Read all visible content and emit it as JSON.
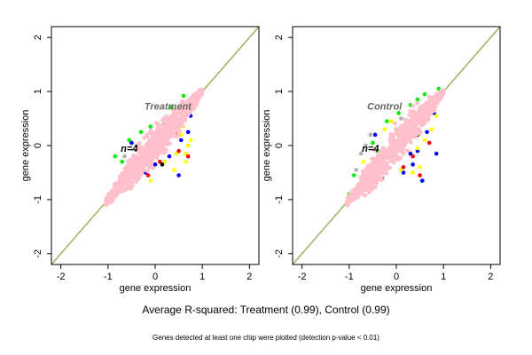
{
  "caption_main": "Average R-squared: Treatment (0.99), Control (0.99)",
  "caption_sub": "Genes detected at least one chip were plotted (detection p-value < 0.01)",
  "colors": {
    "diagonal": "#a3b56a",
    "cloud": "#ffc0cb",
    "outliers": [
      "#0000ff",
      "#00ee00",
      "#ffff00",
      "#ff0000",
      "#b0b0b0",
      "#000000"
    ],
    "panel_label": "#666666"
  },
  "chart_data": [
    {
      "type": "scatter",
      "title": "",
      "panel_label": "Treatment",
      "annotation": "n=4",
      "xlabel": "gene expression",
      "ylabel": "gene expression",
      "xlim": [
        -2.2,
        2.2
      ],
      "ylim": [
        -2.2,
        2.2
      ],
      "xticks": [
        "-2",
        "-1",
        "0",
        "1",
        "2"
      ],
      "yticks": [
        "-2",
        "-1",
        "0",
        "1",
        "2"
      ],
      "grid": false,
      "reference_line": "y = x",
      "cloud": {
        "from": [
          -1.05,
          -1.05
        ],
        "to": [
          1.0,
          1.0
        ]
      },
      "outliers": [
        {
          "x": 0.4,
          "y": 0.55,
          "c": 0
        },
        {
          "x": 0.45,
          "y": 0.3,
          "c": 0
        },
        {
          "x": 0.55,
          "y": 0.1,
          "c": 0
        },
        {
          "x": 0.7,
          "y": 0.25,
          "c": 0
        },
        {
          "x": 0.5,
          "y": -0.55,
          "c": 0
        },
        {
          "x": -0.2,
          "y": -0.5,
          "c": 0
        },
        {
          "x": 0.0,
          "y": -0.35,
          "c": 0
        },
        {
          "x": -0.5,
          "y": 0.05,
          "c": 0
        },
        {
          "x": 0.75,
          "y": 0.55,
          "c": 0
        },
        {
          "x": 0.6,
          "y": 0.75,
          "c": 0
        },
        {
          "x": 0.3,
          "y": -0.2,
          "c": 0
        },
        {
          "x": 0.6,
          "y": 0.92,
          "c": 1
        },
        {
          "x": 0.35,
          "y": 0.7,
          "c": 1
        },
        {
          "x": 0.05,
          "y": 0.4,
          "c": 1
        },
        {
          "x": -0.3,
          "y": 0.25,
          "c": 1
        },
        {
          "x": -0.7,
          "y": -0.3,
          "c": 1
        },
        {
          "x": -0.85,
          "y": -0.2,
          "c": 1
        },
        {
          "x": -0.95,
          "y": -0.9,
          "c": 1
        },
        {
          "x": -0.1,
          "y": 0.35,
          "c": 1
        },
        {
          "x": -0.55,
          "y": 0.1,
          "c": 1
        },
        {
          "x": 0.3,
          "y": 0.45,
          "c": 1
        },
        {
          "x": 0.8,
          "y": 0.9,
          "c": 1
        },
        {
          "x": 0.7,
          "y": 0.0,
          "c": 2
        },
        {
          "x": 0.65,
          "y": -0.3,
          "c": 2
        },
        {
          "x": 0.45,
          "y": -0.15,
          "c": 2
        },
        {
          "x": 0.2,
          "y": -0.3,
          "c": 2
        },
        {
          "x": -0.1,
          "y": -0.65,
          "c": 2
        },
        {
          "x": 0.6,
          "y": 0.35,
          "c": 2
        },
        {
          "x": 0.55,
          "y": 0.2,
          "c": 2
        },
        {
          "x": -0.3,
          "y": -0.4,
          "c": 2
        },
        {
          "x": 0.75,
          "y": 0.1,
          "c": 2
        },
        {
          "x": 0.4,
          "y": -0.45,
          "c": 2
        },
        {
          "x": 0.65,
          "y": -0.15,
          "c": 2
        },
        {
          "x": 0.7,
          "y": -0.2,
          "c": 3
        },
        {
          "x": 0.5,
          "y": -0.1,
          "c": 3
        },
        {
          "x": -0.15,
          "y": -0.55,
          "c": 3
        },
        {
          "x": 0.1,
          "y": -0.3,
          "c": 3
        },
        {
          "x": 0.45,
          "y": 0.2,
          "c": 3
        },
        {
          "x": 0.2,
          "y": 0.4,
          "c": 4
        },
        {
          "x": -0.4,
          "y": 0.0,
          "c": 4
        },
        {
          "x": -0.3,
          "y": -0.4,
          "c": 4
        },
        {
          "x": 0.0,
          "y": -0.2,
          "c": 4
        },
        {
          "x": 0.5,
          "y": 0.6,
          "c": 4
        },
        {
          "x": -0.65,
          "y": -0.2,
          "c": 4
        },
        {
          "x": 0.15,
          "y": -0.35,
          "c": 5
        },
        {
          "x": -0.6,
          "y": -0.45,
          "c": 5
        },
        {
          "x": 0.35,
          "y": 0.5,
          "c": 5
        }
      ]
    },
    {
      "type": "scatter",
      "title": "",
      "panel_label": "Control",
      "annotation": "n=4",
      "xlabel": "gene expression",
      "ylabel": "gene expression",
      "xlim": [
        -2.2,
        2.2
      ],
      "ylim": [
        -2.2,
        2.2
      ],
      "xticks": [
        "-2",
        "-1",
        "0",
        "1",
        "2"
      ],
      "yticks": [
        "-2",
        "-1",
        "0",
        "1",
        "2"
      ],
      "grid": false,
      "reference_line": "y = x",
      "cloud": {
        "from": [
          -1.05,
          -1.05
        ],
        "to": [
          1.0,
          1.0
        ]
      },
      "outliers": [
        {
          "x": 0.7,
          "y": 0.8,
          "c": 0
        },
        {
          "x": 0.8,
          "y": 0.6,
          "c": 0
        },
        {
          "x": 0.5,
          "y": 0.45,
          "c": 0
        },
        {
          "x": 0.45,
          "y": -0.1,
          "c": 0
        },
        {
          "x": 0.35,
          "y": -0.35,
          "c": 0
        },
        {
          "x": 0.55,
          "y": -0.65,
          "c": 0
        },
        {
          "x": 0.85,
          "y": -0.15,
          "c": 0
        },
        {
          "x": 0.15,
          "y": -0.5,
          "c": 0
        },
        {
          "x": 0.65,
          "y": 0.25,
          "c": 0
        },
        {
          "x": -0.45,
          "y": 0.2,
          "c": 0
        },
        {
          "x": 0.3,
          "y": -0.15,
          "c": 0
        },
        {
          "x": 0.6,
          "y": 0.95,
          "c": 1
        },
        {
          "x": 0.3,
          "y": 0.75,
          "c": 1
        },
        {
          "x": -0.2,
          "y": 0.45,
          "c": 1
        },
        {
          "x": -0.5,
          "y": 0.05,
          "c": 1
        },
        {
          "x": -0.9,
          "y": -0.55,
          "c": 1
        },
        {
          "x": -1.0,
          "y": -0.9,
          "c": 1
        },
        {
          "x": 0.05,
          "y": 0.6,
          "c": 1
        },
        {
          "x": 0.9,
          "y": 1.05,
          "c": 1
        },
        {
          "x": 0.45,
          "y": 0.85,
          "c": 1
        },
        {
          "x": 0.0,
          "y": 0.3,
          "c": 1
        },
        {
          "x": -0.4,
          "y": -0.1,
          "c": 1
        },
        {
          "x": -0.25,
          "y": 0.3,
          "c": 2
        },
        {
          "x": 0.45,
          "y": -0.05,
          "c": 2
        },
        {
          "x": 0.75,
          "y": 0.3,
          "c": 2
        },
        {
          "x": 0.5,
          "y": -0.4,
          "c": 2
        },
        {
          "x": -0.7,
          "y": -0.3,
          "c": 2
        },
        {
          "x": 0.35,
          "y": -0.5,
          "c": 2
        },
        {
          "x": 0.85,
          "y": 0.55,
          "c": 2
        },
        {
          "x": -0.1,
          "y": 0.45,
          "c": 2
        },
        {
          "x": 0.6,
          "y": 0.1,
          "c": 2
        },
        {
          "x": 0.1,
          "y": -0.45,
          "c": 2
        },
        {
          "x": -0.55,
          "y": -0.4,
          "c": 2
        },
        {
          "x": 0.7,
          "y": 0.05,
          "c": 3
        },
        {
          "x": 0.5,
          "y": -0.55,
          "c": 3
        },
        {
          "x": 0.15,
          "y": -0.4,
          "c": 3
        },
        {
          "x": 0.35,
          "y": -0.2,
          "c": 3
        },
        {
          "x": -0.75,
          "y": -0.15,
          "c": 4
        },
        {
          "x": -0.55,
          "y": 0.2,
          "c": 4
        },
        {
          "x": 0.1,
          "y": 0.5,
          "c": 4
        },
        {
          "x": 0.6,
          "y": 0.5,
          "c": 4
        },
        {
          "x": -0.65,
          "y": 0.0,
          "c": 4
        },
        {
          "x": -0.85,
          "y": -0.45,
          "c": 4
        },
        {
          "x": -0.6,
          "y": -0.4,
          "c": 5
        },
        {
          "x": -0.3,
          "y": -0.6,
          "c": 5
        },
        {
          "x": 0.45,
          "y": 0.2,
          "c": 5
        }
      ]
    }
  ]
}
